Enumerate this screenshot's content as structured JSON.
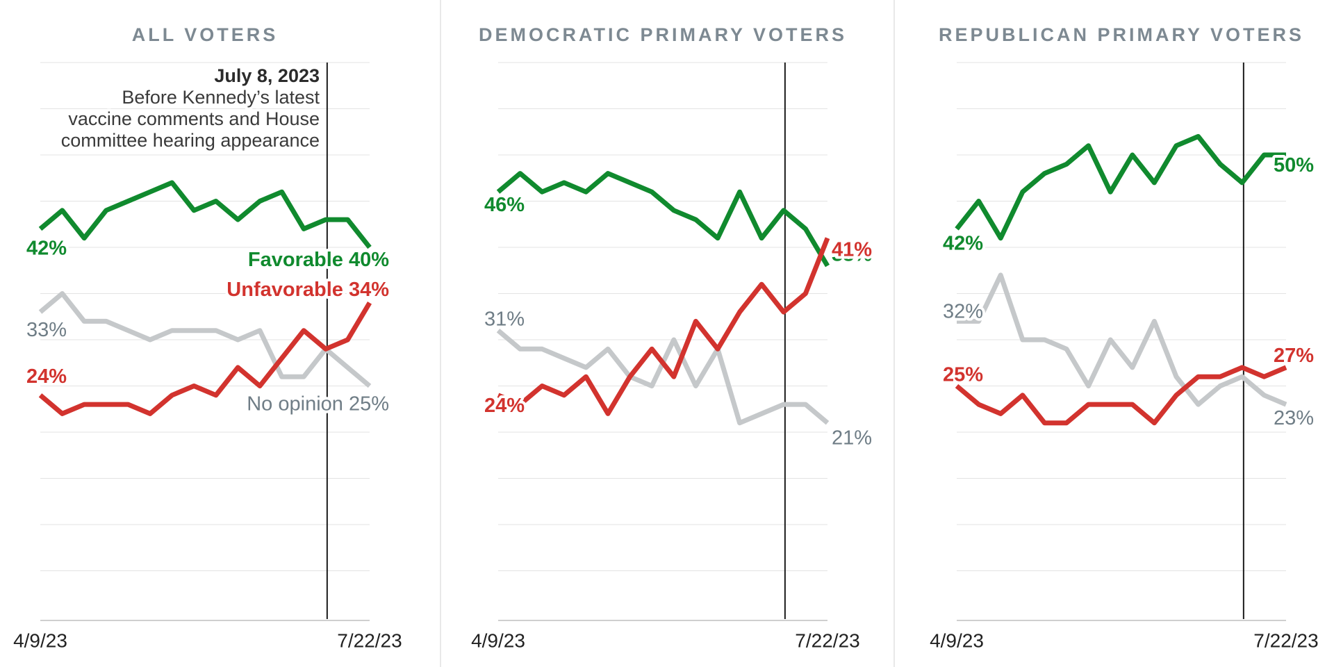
{
  "chart_data": {
    "type": "line",
    "small_multiples": true,
    "x_axis": {
      "start_label": "4/9/23",
      "end_label": "7/22/23",
      "n_points": 16
    },
    "ylim": [
      0,
      62
    ],
    "gridline_values": [
      5,
      10,
      15,
      20,
      25,
      30,
      35,
      40,
      45,
      50,
      55,
      60
    ],
    "grid": true,
    "legend_position": "inline-end-labels",
    "event_line": {
      "title": "July 8, 2023",
      "description_lines": [
        "Before Kennedy’s latest",
        "vaccine comments and House",
        "committee hearing appearance"
      ],
      "x_fraction": 0.871
    },
    "colors": {
      "favorable": "#108a2e",
      "unfavorable": "#d2332e",
      "no_opinion_line": "#c5c8ca",
      "label_gray": "#6f7d86",
      "title_gray": "#7d8992",
      "axis_text": "#222222",
      "annotation_title": "#2b2b2b",
      "annotation_body": "#3a3a3a",
      "gridline": "#e3e3e3",
      "axis_line": "#cfcfcf",
      "divider": "#e0e0e0",
      "event_line_color": "#1a1a1a"
    },
    "panels": [
      {
        "title": "ALL VOTERS",
        "series": [
          {
            "key": "favorable",
            "name": "Favorable",
            "start_label": "42%",
            "end_label": "Favorable 40%",
            "values": [
              42,
              44,
              41,
              44,
              45,
              46,
              47,
              44,
              45,
              43,
              45,
              46,
              42,
              43,
              43,
              40
            ]
          },
          {
            "key": "unfavorable",
            "name": "Unfavorable",
            "start_label": "24%",
            "end_label": "Unfavorable 34%",
            "values": [
              24,
              22,
              23,
              23,
              23,
              22,
              24,
              25,
              24,
              27,
              25,
              28,
              31,
              29,
              30,
              34
            ]
          },
          {
            "key": "no_opinion",
            "name": "No opinion",
            "start_label": "33%",
            "end_label": "No opinion 25%",
            "values": [
              33,
              35,
              32,
              32,
              31,
              30,
              31,
              31,
              31,
              30,
              31,
              26,
              26,
              29,
              27,
              25
            ]
          }
        ]
      },
      {
        "title": "DEMOCRATIC PRIMARY VOTERS",
        "series": [
          {
            "key": "favorable",
            "name": "Favorable",
            "start_label": "46%",
            "end_label": "38%",
            "values": [
              46,
              48,
              46,
              47,
              46,
              48,
              47,
              46,
              44,
              43,
              41,
              46,
              41,
              44,
              42,
              38
            ]
          },
          {
            "key": "unfavorable",
            "name": "Unfavorable",
            "start_label": "24%",
            "end_label": "41%",
            "values": [
              24,
              23,
              25,
              24,
              26,
              22,
              26,
              29,
              26,
              32,
              29,
              33,
              36,
              33,
              35,
              41
            ]
          },
          {
            "key": "no_opinion",
            "name": "No opinion",
            "start_label": "31%",
            "end_label": "21%",
            "values": [
              31,
              29,
              29,
              28,
              27,
              29,
              26,
              25,
              30,
              25,
              29,
              21,
              22,
              23,
              23,
              21
            ]
          }
        ]
      },
      {
        "title": "REPUBLICAN PRIMARY VOTERS",
        "series": [
          {
            "key": "favorable",
            "name": "Favorable",
            "start_label": "42%",
            "end_label": "50%",
            "values": [
              42,
              45,
              41,
              46,
              48,
              49,
              51,
              46,
              50,
              47,
              51,
              52,
              49,
              47,
              50,
              50
            ]
          },
          {
            "key": "unfavorable",
            "name": "Unfavorable",
            "start_label": "25%",
            "end_label": "27%",
            "values": [
              25,
              23,
              22,
              24,
              21,
              21,
              23,
              23,
              23,
              21,
              24,
              26,
              26,
              27,
              26,
              27
            ]
          },
          {
            "key": "no_opinion",
            "name": "No opinion",
            "start_label": "32%",
            "end_label": "23%",
            "values": [
              32,
              32,
              37,
              30,
              30,
              29,
              25,
              30,
              27,
              32,
              26,
              23,
              25,
              26,
              24,
              23
            ]
          }
        ]
      }
    ]
  }
}
